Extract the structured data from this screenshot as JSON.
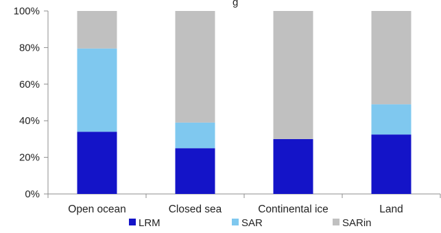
{
  "chart_data": {
    "type": "bar",
    "stacked": true,
    "title": "",
    "title_visible_fragment": "g",
    "categories": [
      "Open ocean",
      "Closed sea",
      "Continental ice",
      "Land"
    ],
    "series": [
      {
        "name": "LRM",
        "color": "#1414c8",
        "values": [
          34,
          25,
          30,
          32.5
        ]
      },
      {
        "name": "SAR",
        "color": "#7fc8ef",
        "values": [
          45.5,
          14,
          0,
          16.5
        ]
      },
      {
        "name": "SARin",
        "color": "#c0c0c0",
        "values": [
          20.5,
          61,
          70,
          51
        ]
      }
    ],
    "y_ticks": [
      "0%",
      "20%",
      "40%",
      "60%",
      "80%",
      "100%"
    ],
    "ylim": [
      0,
      100
    ],
    "xlabel": "",
    "ylabel": "",
    "grid": false,
    "legend_position": "bottom"
  }
}
